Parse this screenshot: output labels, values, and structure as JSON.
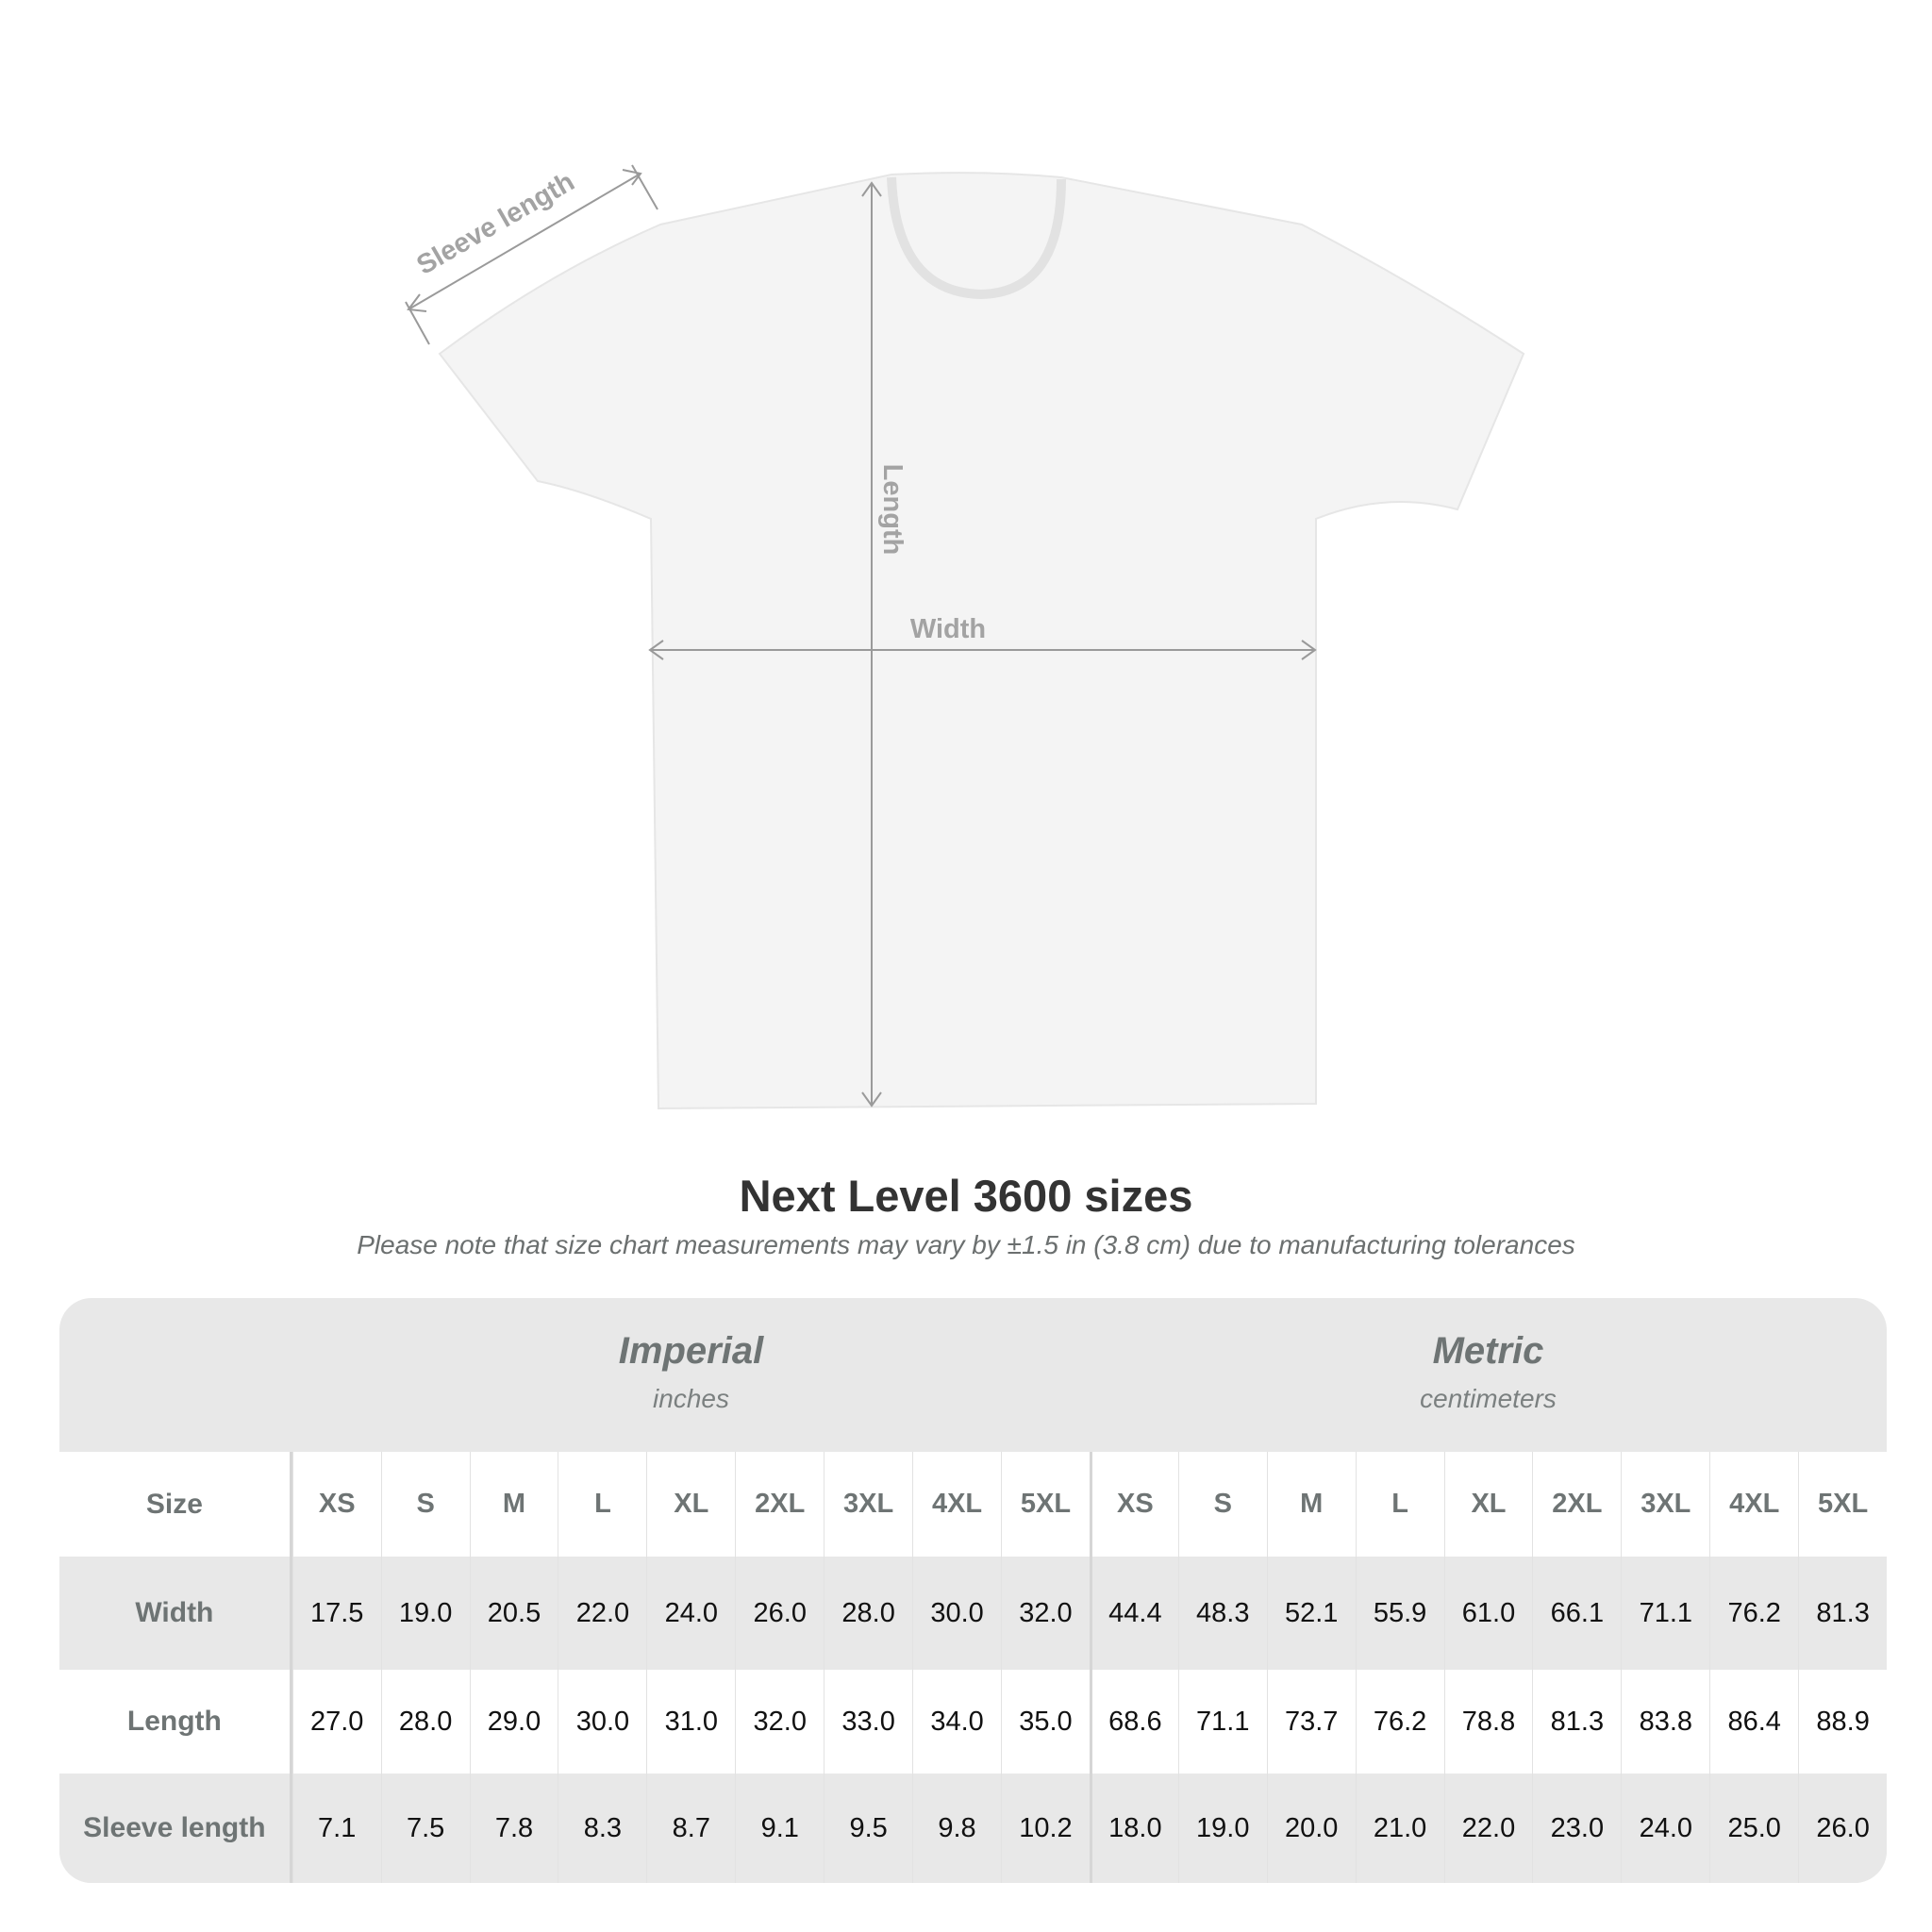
{
  "diagram": {
    "sleeve_label": "Sleeve length",
    "length_label": "Length",
    "width_label": "Width"
  },
  "title": "Next Level 3600 sizes",
  "subtitle": "Please note that size chart measurements may vary by ±1.5 in (3.8 cm) due to manufacturing tolerances",
  "table": {
    "imperial": {
      "label": "Imperial",
      "unit": "inches"
    },
    "metric": {
      "label": "Metric",
      "unit": "centimeters"
    },
    "sizes": [
      "XS",
      "S",
      "M",
      "L",
      "XL",
      "2XL",
      "3XL",
      "4XL",
      "5XL"
    ],
    "rows": [
      {
        "label": "Size"
      },
      {
        "label": "Width",
        "imperial": [
          "17.5",
          "19.0",
          "20.5",
          "22.0",
          "24.0",
          "26.0",
          "28.0",
          "30.0",
          "32.0"
        ],
        "metric": [
          "44.4",
          "48.3",
          "52.1",
          "55.9",
          "61.0",
          "66.1",
          "71.1",
          "76.2",
          "81.3"
        ]
      },
      {
        "label": "Length",
        "imperial": [
          "27.0",
          "28.0",
          "29.0",
          "30.0",
          "31.0",
          "32.0",
          "33.0",
          "34.0",
          "35.0"
        ],
        "metric": [
          "68.6",
          "71.1",
          "73.7",
          "76.2",
          "78.8",
          "81.3",
          "83.8",
          "86.4",
          "88.9"
        ]
      },
      {
        "label": "Sleeve length",
        "imperial": [
          "7.1",
          "7.5",
          "7.8",
          "8.3",
          "8.7",
          "9.1",
          "9.5",
          "9.8",
          "10.2"
        ],
        "metric": [
          "18.0",
          "19.0",
          "20.0",
          "21.0",
          "22.0",
          "23.0",
          "24.0",
          "25.0",
          "26.0"
        ]
      }
    ]
  },
  "colors": {
    "header_bg": "#e8e8e8",
    "label_text": "#6e7474",
    "measure_line": "#9a9a9a"
  }
}
